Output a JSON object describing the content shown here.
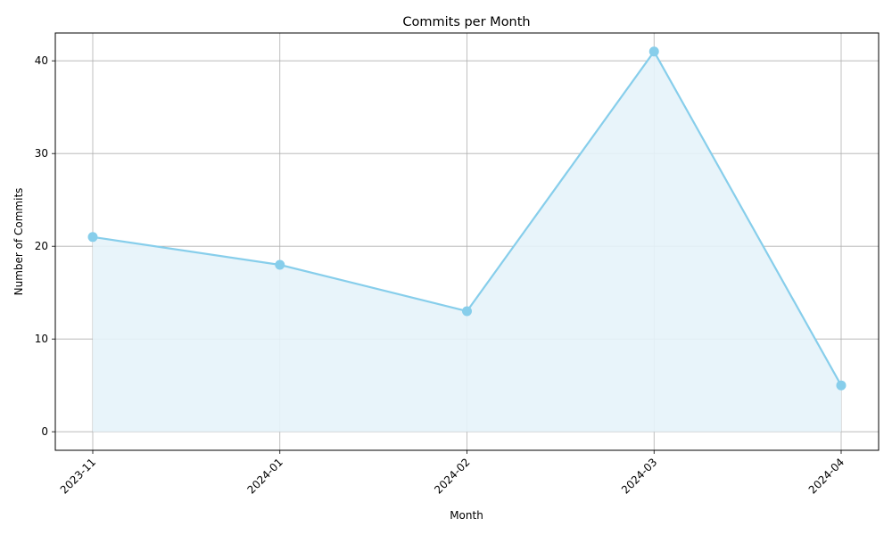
{
  "chart_data": {
    "type": "area",
    "title": "Commits per Month",
    "xlabel": "Month",
    "ylabel": "Number of Commits",
    "categories": [
      "2023-11",
      "2024-01",
      "2024-02",
      "2024-03",
      "2024-04"
    ],
    "series": [
      {
        "values": [
          21,
          18,
          13,
          41,
          5
        ]
      }
    ],
    "ylim": [
      -2,
      43
    ],
    "yticks": [
      0,
      10,
      20,
      30,
      40
    ],
    "grid": true,
    "colors": {
      "line": "#87ceeb",
      "fill": "#e6f3fa",
      "grid": "#b0b0b0",
      "axis": "#000000"
    }
  }
}
